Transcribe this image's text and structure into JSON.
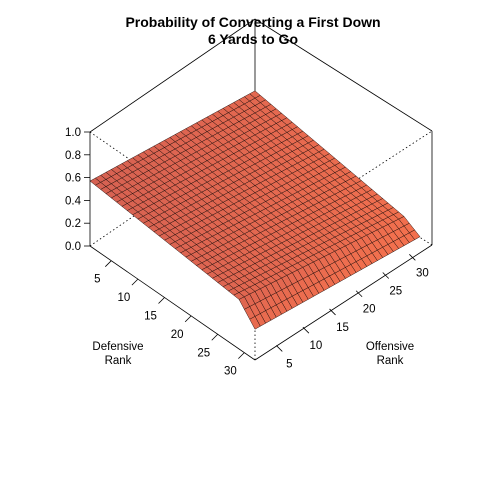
{
  "chart_data": {
    "type": "surface",
    "title": "Probability of Converting a First Down",
    "subtitle": "6 Yards to Go",
    "zlim": [
      0.0,
      1.0
    ],
    "z_ticks": [
      "0.0",
      "0.2",
      "0.4",
      "0.6",
      "0.8",
      "1.0"
    ],
    "x_axis": {
      "label_line1": "Defensive",
      "label_line2": "Rank",
      "range": [
        1,
        32
      ],
      "ticks": [
        "5",
        "10",
        "15",
        "20",
        "25",
        "30"
      ]
    },
    "y_axis": {
      "label_line1": "Offensive",
      "label_line2": "Rank",
      "range": [
        1,
        32
      ],
      "ticks": [
        "5",
        "10",
        "15",
        "20",
        "25",
        "30"
      ]
    },
    "surface_corners": {
      "defensive_1_offensive_1": 0.57,
      "defensive_32_offensive_1": 0.42,
      "defensive_1_offensive_32": 0.37,
      "defensive_32_offensive_32": 0.15
    },
    "colors": {
      "surface_low": "#f2704e",
      "surface_high": "#d46052",
      "edge_lines": "#1a0a08",
      "box": "#000000"
    }
  }
}
